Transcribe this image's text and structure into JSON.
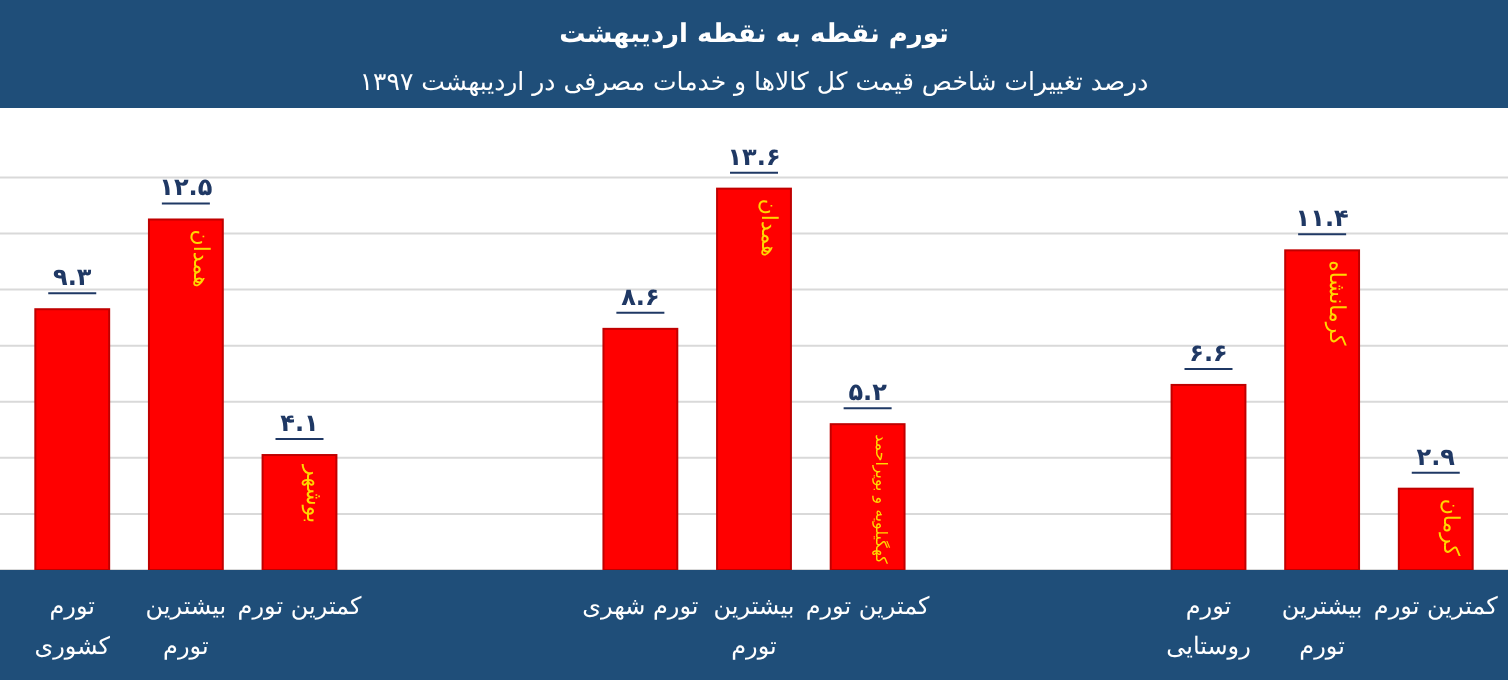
{
  "chart_data": {
    "type": "bar",
    "title": "تورم نقطه به نقطه اردیبهشت",
    "subtitle": "درصد تغییرات شاخص قیمت کل کالاها و خدمات مصرفی در اردیبهشت ۱۳۹۷",
    "categories": [
      "تورم کشوری",
      "بیشترین تورم",
      "کمترین تورم",
      null,
      null,
      "تورم شهری",
      "بیشترین تورم",
      "کمترین تورم",
      null,
      null,
      "تورم روستایی",
      "بیشترین تورم",
      "کمترین تورم"
    ],
    "values": [
      9.3,
      12.5,
      4.1,
      null,
      null,
      8.6,
      13.6,
      5.2,
      null,
      null,
      6.6,
      11.4,
      2.9
    ],
    "value_labels": [
      "۹.۳",
      "۱۲.۵",
      "۴.۱",
      null,
      null,
      "۸.۶",
      "۱۳.۶",
      "۵.۲",
      null,
      null,
      "۶.۶",
      "۱۱.۴",
      "۲.۹"
    ],
    "color": "#ff0000",
    "yticks": [
      {
        "value": 0,
        "label": null
      },
      {
        "value": 2,
        "label": null
      },
      {
        "value": 4,
        "label": null
      },
      {
        "value": 6,
        "label": null
      },
      {
        "value": 8,
        "label": null
      },
      {
        "value": 10,
        "label": null
      },
      {
        "value": 12,
        "label": null
      },
      {
        "value": 14,
        "label": null
      }
    ],
    "grid": "y",
    "tick_labels": "x",
    "annotations": [
      "همدان",
      "بوشهر",
      "همدان",
      "کهگیلویه و بویراحمد",
      "کرمانشاه",
      "کرمان"
    ]
  }
}
